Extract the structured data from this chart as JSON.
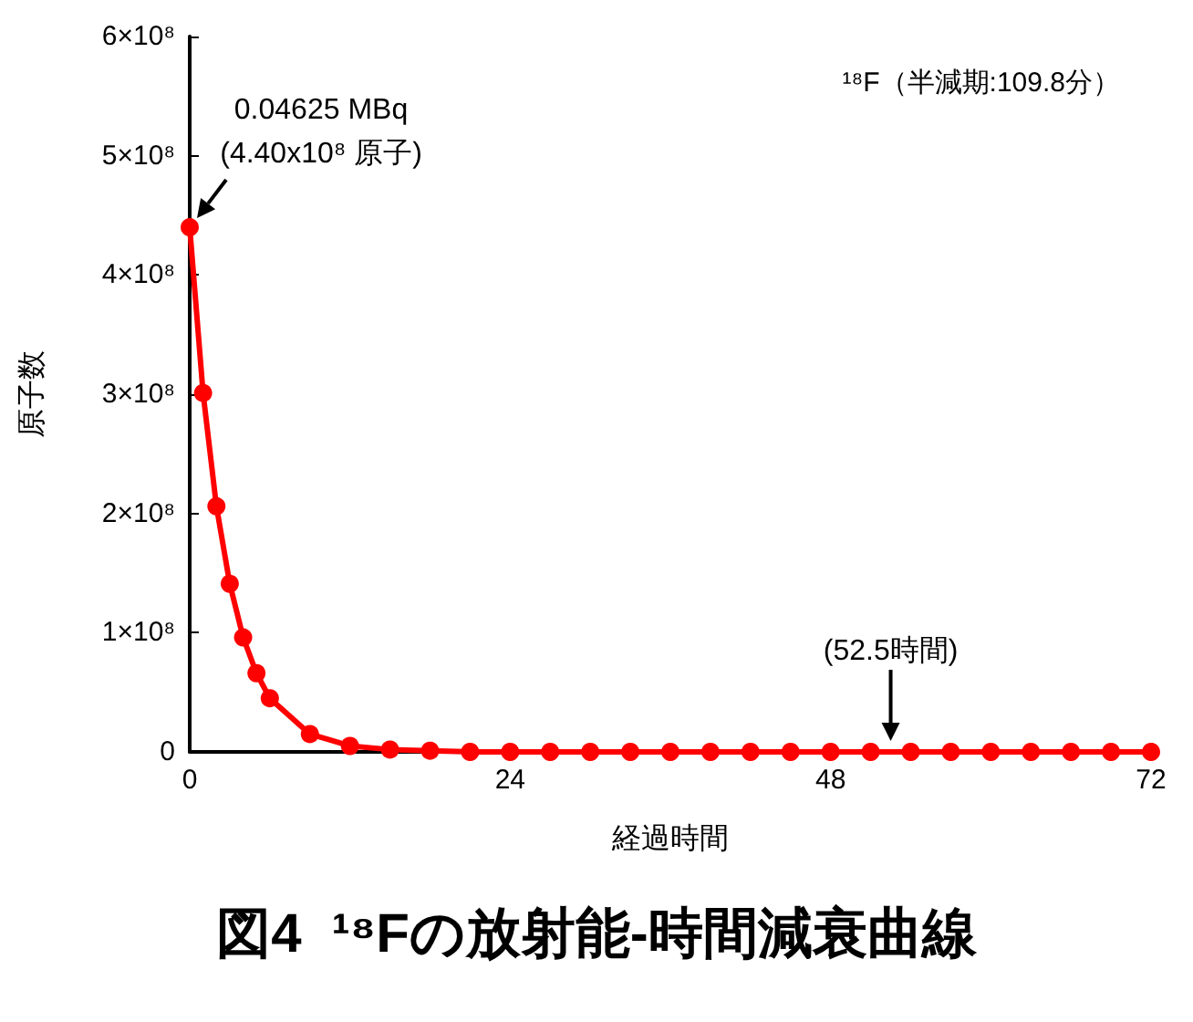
{
  "chart_data": {
    "type": "line",
    "title": "図4  ¹⁸Fの放射能-時間減衰曲線",
    "xlabel": "経過時間",
    "ylabel": "原子数",
    "x": [
      0,
      1,
      2,
      3,
      4,
      5,
      6,
      9,
      12,
      15,
      18,
      21,
      24,
      27,
      30,
      33,
      36,
      39,
      42,
      45,
      48,
      51,
      54,
      57,
      60,
      63,
      66,
      69,
      72
    ],
    "series": [
      {
        "color": "#ff0000",
        "values": [
          440000000,
          301000000,
          206000000,
          141000000,
          96000000,
          66000000,
          45000000,
          15000000,
          5000000,
          2000000,
          1000000,
          0,
          0,
          0,
          0,
          0,
          0,
          0,
          0,
          0,
          0,
          0,
          0,
          0,
          0,
          0,
          0,
          0,
          0
        ]
      }
    ],
    "xlim": [
      0,
      72
    ],
    "xticks": [
      0,
      24,
      48,
      72
    ],
    "ylim": [
      0,
      600000000
    ],
    "yticks": [
      0,
      {
        "value": 100000000,
        "label": "1×10⁸"
      },
      {
        "value": 200000000,
        "label": "2×10⁸"
      },
      {
        "value": 300000000,
        "label": "3×10⁸"
      },
      {
        "value": 400000000,
        "label": "4×10⁸"
      },
      {
        "value": 500000000,
        "label": "5×10⁸"
      },
      {
        "value": 600000000,
        "label": "6×10⁸"
      }
    ],
    "annotations": [
      "¹⁸F（半減期:109.8分）",
      {
        "text": "0.04625 MBq\n(4.40x10⁸ 原子)",
        "x": 0,
        "y": 440000000
      },
      {
        "text": "(52.5時間)",
        "x": 52.5,
        "y": 0
      }
    ],
    "grid": false,
    "marker": "circle",
    "line_style": "solid"
  }
}
